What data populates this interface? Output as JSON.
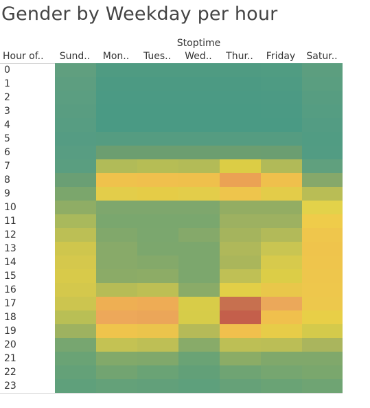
{
  "chart_data": {
    "type": "heatmap",
    "title": "Gender by Weekday per hour",
    "column_group_label": "Stoptime",
    "row_header_label": "Hour of..",
    "columns": [
      "Sund..",
      "Mon..",
      "Tues..",
      "Wed..",
      "Thur..",
      "Friday",
      "Satur.."
    ],
    "rows": [
      "0",
      "1",
      "2",
      "3",
      "4",
      "5",
      "6",
      "7",
      "8",
      "9",
      "10",
      "11",
      "12",
      "13",
      "14",
      "15",
      "16",
      "17",
      "18",
      "19",
      "20",
      "21",
      "22",
      "23"
    ],
    "colors": [
      [
        "#609f7f",
        "#4f9b82",
        "#4f9b82",
        "#4f9b82",
        "#4f9b82",
        "#509c82",
        "#5c9e7f"
      ],
      [
        "#5d9e80",
        "#4c9a83",
        "#4c9a83",
        "#4c9a83",
        "#4c9a83",
        "#4e9b83",
        "#5a9e80"
      ],
      [
        "#5b9e81",
        "#4b9a84",
        "#4b9a84",
        "#4b9a84",
        "#4b9a84",
        "#4c9a84",
        "#579d81"
      ],
      [
        "#599d81",
        "#4a9a84",
        "#4a9a84",
        "#4a9a84",
        "#4a9a84",
        "#4b9a84",
        "#559d82"
      ],
      [
        "#579d82",
        "#4a9a84",
        "#4a9a84",
        "#4a9a84",
        "#4a9a84",
        "#4a9a84",
        "#539c83"
      ],
      [
        "#559c83",
        "#559c81",
        "#559c81",
        "#559c81",
        "#559c81",
        "#559c81",
        "#519c83"
      ],
      [
        "#589d82",
        "#6c9e70",
        "#6c9e70",
        "#6c9e70",
        "#6c9e70",
        "#6b9e71",
        "#529c83"
      ],
      [
        "#5a9e80",
        "#b1bb58",
        "#b6bd55",
        "#b3bb57",
        "#dccd45",
        "#b1ba58",
        "#60a07e"
      ],
      [
        "#6a9f74",
        "#efc24c",
        "#f0c04d",
        "#efc04c",
        "#eba254",
        "#efc04c",
        "#86a86a"
      ],
      [
        "#7ba66c",
        "#e3cd4a",
        "#e5cc47",
        "#e3cd4a",
        "#eec54c",
        "#e3cc49",
        "#b9bd55"
      ],
      [
        "#8fad65",
        "#7ea76d",
        "#7ea76d",
        "#7ea76d",
        "#93ad63",
        "#93ad63",
        "#e3d24a"
      ],
      [
        "#a9b95c",
        "#7aa76e",
        "#7aa76e",
        "#7aa76e",
        "#9db161",
        "#9db161",
        "#efcc4a"
      ],
      [
        "#bcbf55",
        "#81a86b",
        "#7ba76e",
        "#85a96a",
        "#a5b45d",
        "#b2ba59",
        "#efc64c"
      ],
      [
        "#cfc64d",
        "#88aa69",
        "#7ca76d",
        "#7ca76d",
        "#afb85a",
        "#c9c552",
        "#efc44c"
      ],
      [
        "#d5c84c",
        "#88aa69",
        "#84a96a",
        "#7ca76d",
        "#aab65b",
        "#d7ca4c",
        "#efc54c"
      ],
      [
        "#d8ca4a",
        "#8bab67",
        "#8dac66",
        "#7ca76d",
        "#bfc055",
        "#dccd47",
        "#eec64c"
      ],
      [
        "#d4c84c",
        "#b6bc56",
        "#bdbf54",
        "#8aab68",
        "#e2cf47",
        "#e9c74a",
        "#eec74c"
      ],
      [
        "#ccc54f",
        "#eeaf53",
        "#eeac55",
        "#d8cc48",
        "#c7704f",
        "#eba85a",
        "#edc84c"
      ],
      [
        "#b9bf55",
        "#eda85a",
        "#eba659",
        "#d6cc49",
        "#c45f4b",
        "#f0c04d",
        "#e8cf47"
      ],
      [
        "#9eb260",
        "#efc44c",
        "#ebc44c",
        "#b5ba58",
        "#f0c04d",
        "#e7cc48",
        "#d4ca4b"
      ],
      [
        "#77a670",
        "#c4c253",
        "#bebf55",
        "#88ab69",
        "#bdbf55",
        "#bbbe56",
        "#aab55d"
      ],
      [
        "#6aa375",
        "#82a96a",
        "#80a86b",
        "#6aa375",
        "#8bac66",
        "#80a86b",
        "#80a86b"
      ],
      [
        "#64a178",
        "#72a471",
        "#6aa375",
        "#62a078",
        "#6fa473",
        "#76a670",
        "#7aa76d"
      ],
      [
        "#5fa07b",
        "#64a179",
        "#62a07a",
        "#5ea07c",
        "#66a178",
        "#6aa375",
        "#6fa473"
      ]
    ]
  }
}
